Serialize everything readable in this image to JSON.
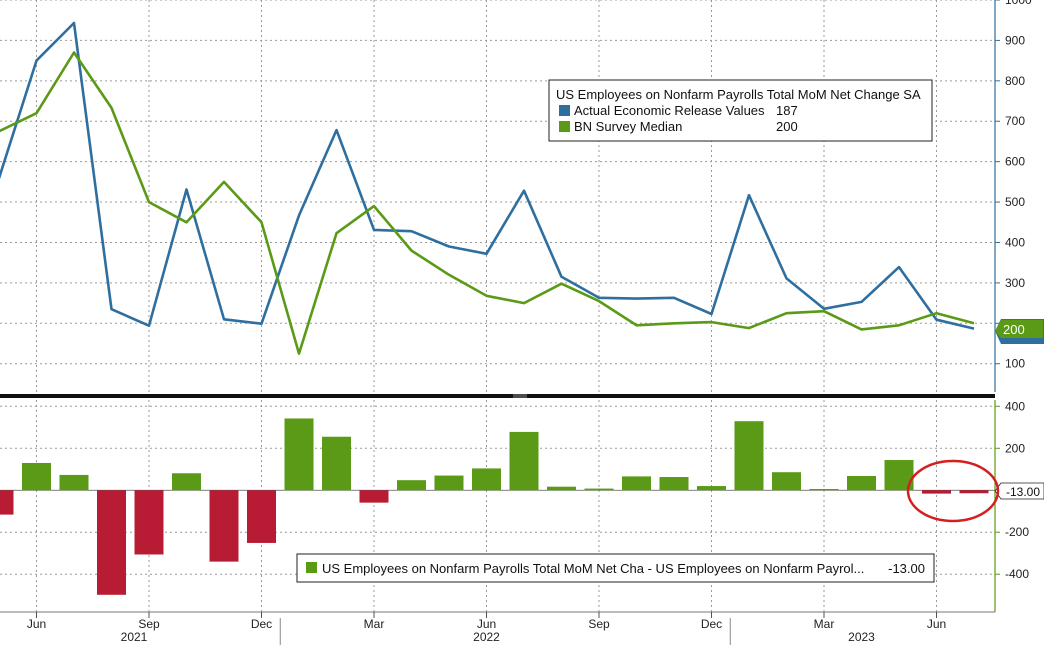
{
  "chart_data": [
    {
      "type": "line",
      "title": "US Employees on Nonfarm Payrolls Total MoM Net Change SA",
      "x": [
        "2021-05",
        "2021-06",
        "2021-07",
        "2021-08",
        "2021-09",
        "2021-10",
        "2021-11",
        "2021-12",
        "2022-01",
        "2022-02",
        "2022-03",
        "2022-04",
        "2022-05",
        "2022-06",
        "2022-07",
        "2022-08",
        "2022-09",
        "2022-10",
        "2022-11",
        "2022-12",
        "2023-01",
        "2023-02",
        "2023-03",
        "2023-04",
        "2023-05",
        "2023-06",
        "2023-07"
      ],
      "series": [
        {
          "name": "Actual Economic Release Values",
          "legend_value": "187",
          "color": "#2f6fa0",
          "values": [
            559,
            850,
            943,
            235,
            194,
            531,
            210,
            199,
            467,
            678,
            431,
            428,
            390,
            372,
            528,
            315,
            263,
            261,
            263,
            223,
            517,
            311,
            236,
            253,
            339,
            209,
            187
          ]
        },
        {
          "name": "BN Survey Median",
          "legend_value": "200",
          "color": "#5a9a16",
          "values": [
            675,
            720,
            870,
            733,
            500,
            450,
            550,
            450,
            125,
            423,
            490,
            380,
            320,
            268,
            250,
            298,
            255,
            195,
            200,
            203,
            188,
            225,
            230,
            185,
            195,
            225,
            200
          ]
        }
      ],
      "ylim": [
        30,
        1000
      ],
      "yticks": [
        100,
        200,
        300,
        400,
        500,
        600,
        700,
        800,
        900,
        1000
      ],
      "last_value_tag": "200",
      "grid": true,
      "legend_position": "top-right"
    },
    {
      "type": "bar",
      "title": "US Employees on Nonfarm Payrolls Total MoM Net Cha - US Employees on Nonfarm Payrol...",
      "legend_value": "-13.00",
      "x": [
        "2021-05",
        "2021-06",
        "2021-07",
        "2021-08",
        "2021-09",
        "2021-10",
        "2021-11",
        "2021-12",
        "2022-01",
        "2022-02",
        "2022-03",
        "2022-04",
        "2022-05",
        "2022-06",
        "2022-07",
        "2022-08",
        "2022-09",
        "2022-10",
        "2022-11",
        "2022-12",
        "2023-01",
        "2023-02",
        "2023-03",
        "2023-04",
        "2023-05",
        "2023-06",
        "2023-07"
      ],
      "values": [
        -116,
        130,
        73,
        -498,
        -306,
        81,
        -340,
        -251,
        342,
        255,
        -59,
        48,
        70,
        104,
        278,
        17,
        8,
        66,
        63,
        20,
        329,
        86,
        6,
        68,
        144,
        -16,
        -13
      ],
      "ylim": [
        -580,
        430
      ],
      "yticks": [
        400,
        200,
        -13,
        -200,
        -400
      ],
      "last_value_tag": "-13.00",
      "positive_color": "#5a9a16",
      "negative_color": "#b81c34",
      "grid": true,
      "legend_position": "bottom-right"
    }
  ],
  "x_axis": {
    "month_labels": [
      "Jun",
      "Sep",
      "Dec",
      "Mar",
      "Jun",
      "Sep",
      "Dec",
      "Mar",
      "Jun"
    ],
    "year_labels": [
      "2021",
      "2022",
      "2023"
    ]
  },
  "annotation": {
    "shape": "ellipse",
    "color": "#d42020"
  }
}
